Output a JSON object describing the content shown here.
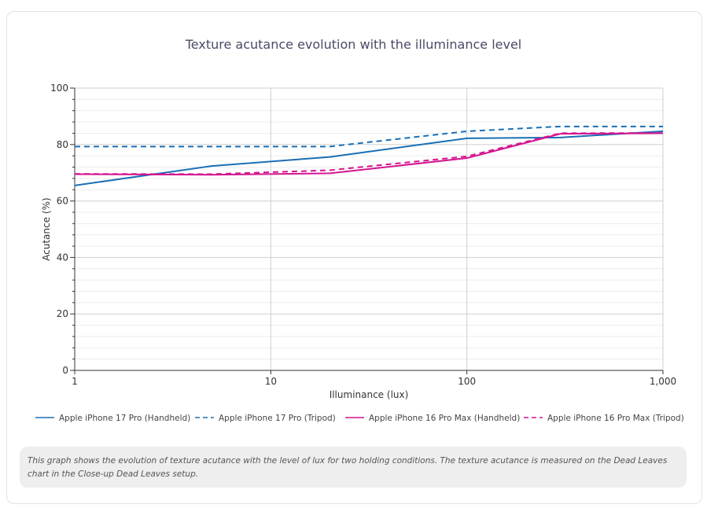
{
  "chart_data": {
    "type": "line",
    "title": "Texture acutance evolution with the illuminance level",
    "xlabel": "Illuminance (lux)",
    "ylabel": "Acutance (%)",
    "xscale": "log",
    "xlim": [
      1,
      1000
    ],
    "ylim": [
      0,
      100
    ],
    "xticks": [
      {
        "v": 1,
        "label": "1"
      },
      {
        "v": 10,
        "label": "10"
      },
      {
        "v": 100,
        "label": "100"
      },
      {
        "v": 1000,
        "label": "1,000"
      }
    ],
    "yticks": [
      0,
      20,
      40,
      60,
      80,
      100
    ],
    "legend_position": "bottom",
    "x": [
      1,
      5,
      20,
      100,
      300,
      1000
    ],
    "series": [
      {
        "name": "Apple iPhone 17 Pro (Handheld)",
        "color": "#1a6fb5",
        "dash": false,
        "values": [
          65.5,
          72.4,
          75.6,
          82.2,
          82.5,
          84.7
        ]
      },
      {
        "name": "Apple iPhone 17 Pro (Tripod)",
        "color": "#1a6fb5",
        "dash": true,
        "values": [
          79.3,
          79.3,
          79.3,
          84.7,
          86.4,
          86.4
        ]
      },
      {
        "name": "Apple iPhone 16 Pro Max (Handheld)",
        "color": "#d4148f",
        "dash": false,
        "values": [
          69.5,
          69.3,
          69.8,
          75.2,
          83.8,
          84.0
        ]
      },
      {
        "name": "Apple iPhone 16 Pro Max (Tripod)",
        "color": "#d4148f",
        "dash": true,
        "values": [
          69.6,
          69.5,
          70.9,
          75.8,
          84.0,
          84.1
        ]
      }
    ]
  },
  "caption": "This graph shows the evolution of texture acutance with the level of lux for two holding conditions. The texture acutance is measured on the Dead Leaves chart in the Close-up Dead Leaves setup."
}
